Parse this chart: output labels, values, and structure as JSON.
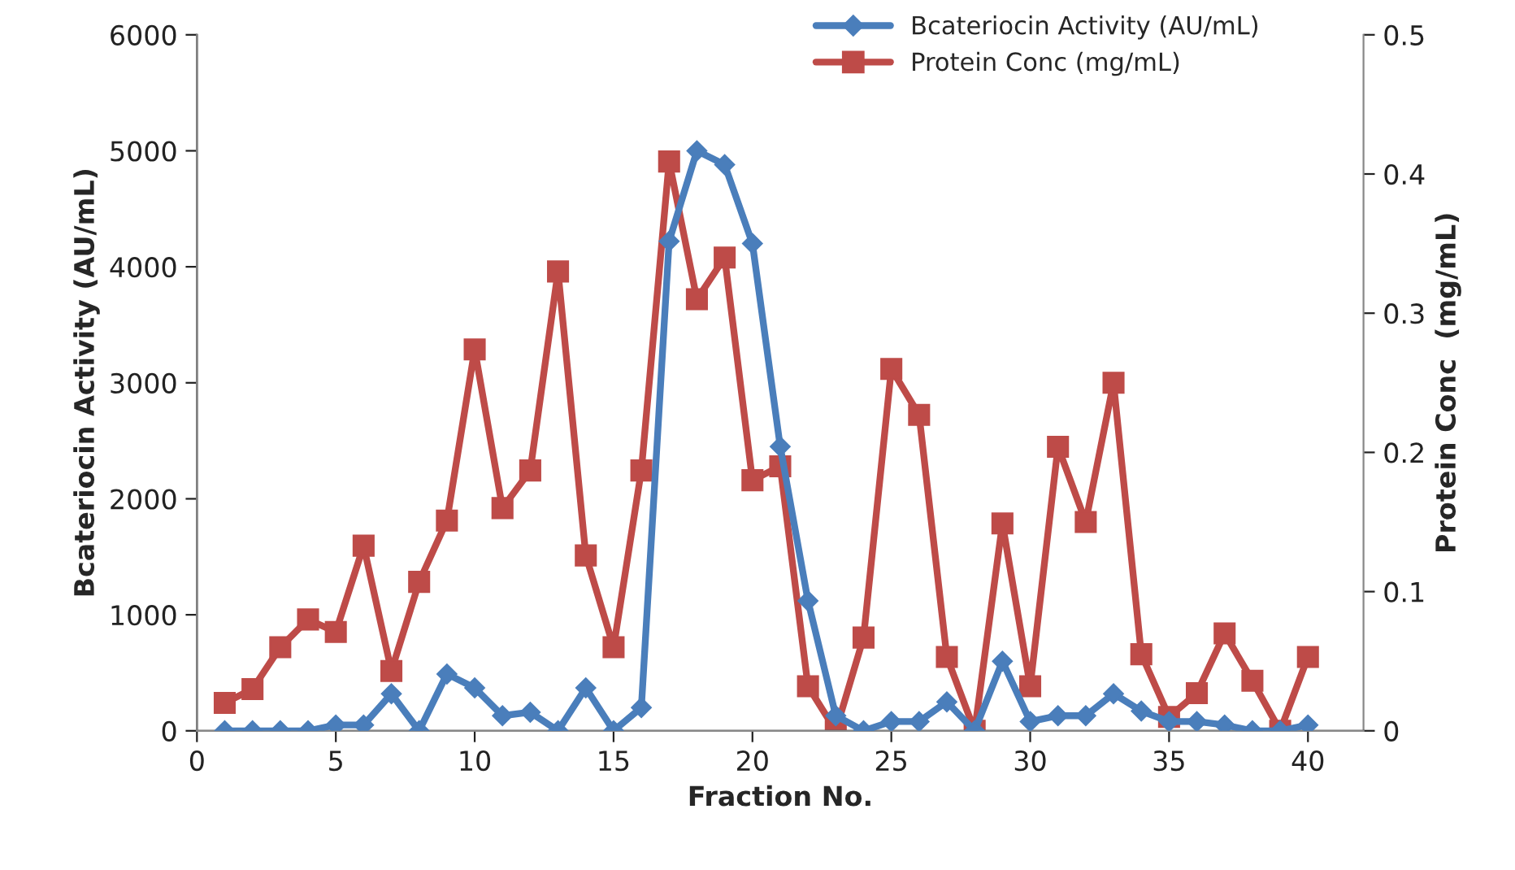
{
  "chart_data": {
    "type": "line",
    "xlabel": "Fraction No.",
    "ylabel": "Bcateriocin Activity (AU/mL)",
    "y2label": "Protein Conc  (mg/mL)",
    "x": [
      1,
      2,
      3,
      4,
      5,
      6,
      7,
      8,
      9,
      10,
      11,
      12,
      13,
      14,
      15,
      16,
      17,
      18,
      19,
      20,
      21,
      22,
      23,
      24,
      25,
      26,
      27,
      28,
      29,
      30,
      31,
      32,
      33,
      34,
      35,
      36,
      37,
      38,
      39,
      40
    ],
    "series": [
      {
        "name": "Bcateriocin Activity (AU/mL)",
        "color": "#4a7ebb",
        "marker": "diamond",
        "values": [
          0,
          0,
          0,
          0,
          50,
          50,
          320,
          0,
          490,
          370,
          130,
          160,
          0,
          370,
          0,
          200,
          4220,
          5000,
          4880,
          4200,
          2450,
          1120,
          130,
          0,
          80,
          80,
          250,
          0,
          600,
          80,
          130,
          130,
          320,
          170,
          80,
          80,
          50,
          0,
          0,
          50
        ]
      },
      {
        "name": "Protein Conc (mg/mL)",
        "color": "#be4b48",
        "marker": "square",
        "axis": "y2",
        "values": [
          0.02,
          0.03,
          0.06,
          0.08,
          0.071,
          0.133,
          0.043,
          0.107,
          0.151,
          0.274,
          0.16,
          0.187,
          0.33,
          0.126,
          0.06,
          0.187,
          0.409,
          0.31,
          0.34,
          0.18,
          0.19,
          0.032,
          0,
          0.067,
          0.26,
          0.227,
          0.053,
          0,
          0.149,
          0.032,
          0.204,
          0.15,
          0.25,
          0.055,
          0.01,
          0.027,
          0.07,
          0.036,
          0,
          0.053
        ]
      }
    ],
    "xlim": [
      0,
      42
    ],
    "xticks": [
      0,
      5,
      10,
      15,
      20,
      25,
      30,
      35,
      40
    ],
    "ylim": [
      0,
      6000
    ],
    "yticks": [
      0,
      1000,
      2000,
      3000,
      4000,
      5000,
      6000
    ],
    "y2lim": [
      0,
      0.5
    ],
    "y2ticks": [
      {
        "value": 0,
        "label": "0"
      },
      0.1,
      0.2,
      0.3,
      0.4,
      0.5
    ],
    "grid": false,
    "legend": "top right",
    "line_style": "solid"
  }
}
